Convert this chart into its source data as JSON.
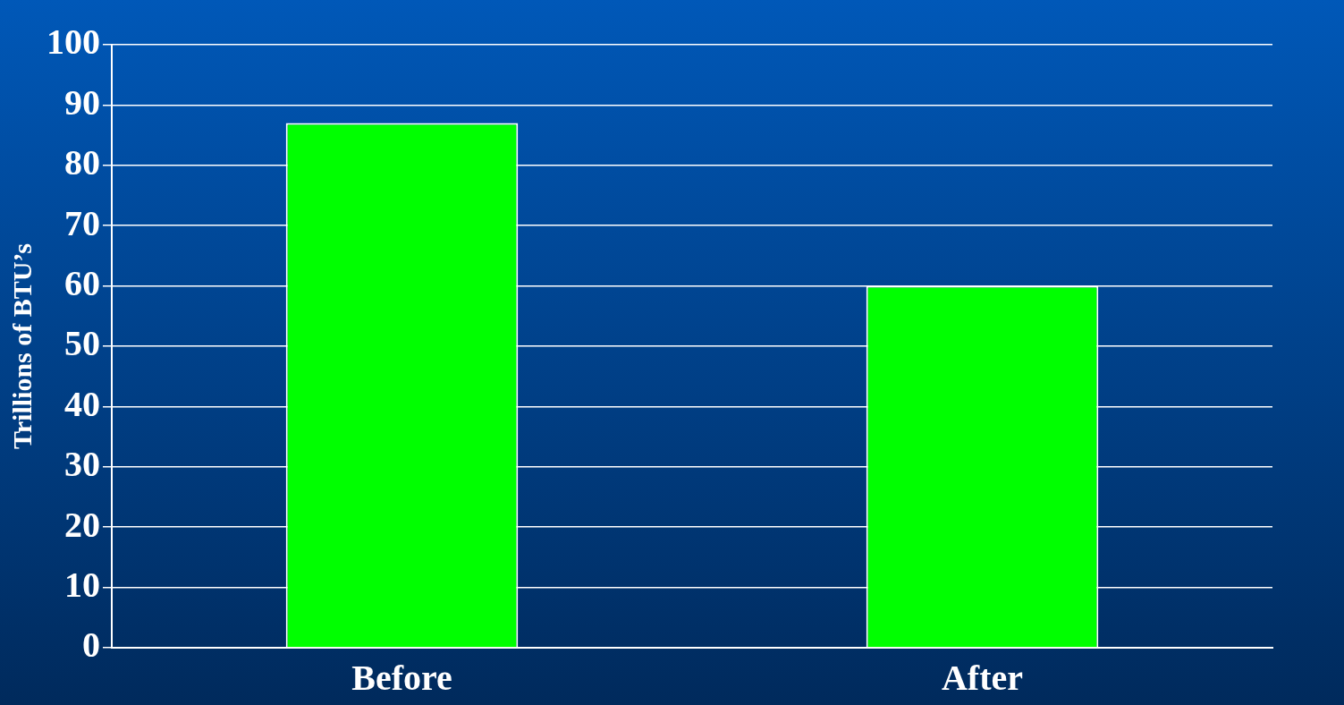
{
  "chart_data": {
    "type": "bar",
    "ylabel": "Trillions of BTU’s",
    "categories": [
      "Before",
      "After"
    ],
    "values": [
      87,
      60
    ],
    "color": "#00ff00",
    "ylim": [
      0,
      100
    ],
    "yticks": [
      0,
      10,
      20,
      30,
      40,
      50,
      60,
      70,
      80,
      90,
      100
    ],
    "grid": "y",
    "legend": false
  }
}
